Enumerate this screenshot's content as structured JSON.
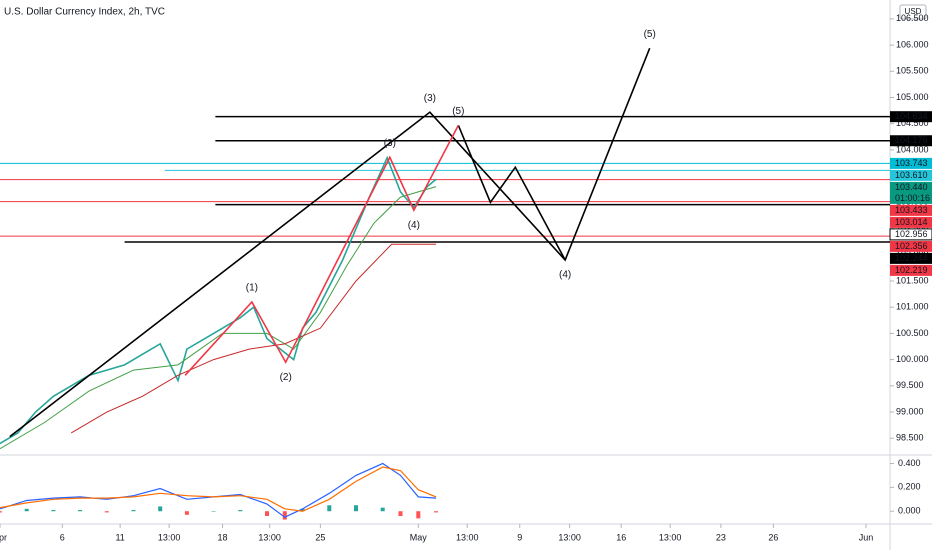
{
  "chart_data": {
    "type": "line",
    "title": "U.S. Dollar Currency Index, 2h, TVC",
    "currency": "USD",
    "xlim": [
      0,
      100
    ],
    "xticks": [
      {
        "value": 0,
        "label": "Apr"
      },
      {
        "value": 7,
        "label": "6"
      },
      {
        "value": 13.5,
        "label": "11"
      },
      {
        "value": 19,
        "label": "13:00"
      },
      {
        "value": 25,
        "label": "18"
      },
      {
        "value": 30.3,
        "label": "13:00"
      },
      {
        "value": 36,
        "label": "25"
      },
      {
        "value": 47,
        "label": "May"
      },
      {
        "value": 52.5,
        "label": "13:00"
      },
      {
        "value": 58.4,
        "label": "9"
      },
      {
        "value": 64,
        "label": "13:00"
      },
      {
        "value": 69.8,
        "label": "16"
      },
      {
        "value": 75.3,
        "label": "13:00"
      },
      {
        "value": 81,
        "label": "23"
      },
      {
        "value": 86.9,
        "label": "26"
      },
      {
        "value": 97.3,
        "label": "Jun"
      }
    ],
    "ylim": [
      98.18,
      106.86
    ],
    "yticks": [
      {
        "value": 98.5,
        "label": "98.500"
      },
      {
        "value": 99,
        "label": "99.000"
      },
      {
        "value": 99.5,
        "label": "99.500"
      },
      {
        "value": 100,
        "label": "100.000"
      },
      {
        "value": 100.5,
        "label": "100.500"
      },
      {
        "value": 101,
        "label": "101.000"
      },
      {
        "value": 101.5,
        "label": "101.500"
      },
      {
        "value": 102,
        "label": "102.000"
      },
      {
        "value": 102.5,
        "label": "102.500"
      },
      {
        "value": 103,
        "label": "103.000"
      },
      {
        "value": 103.5,
        "label": "103.500"
      },
      {
        "value": 104,
        "label": "104.000"
      },
      {
        "value": 104.5,
        "label": "104.500"
      },
      {
        "value": 105,
        "label": "105.000"
      },
      {
        "value": 105.5,
        "label": "105.500"
      },
      {
        "value": 106,
        "label": "106.000"
      },
      {
        "value": 106.5,
        "label": "106.500"
      }
    ],
    "series": [
      {
        "color": "#26a69a",
        "x": [
          0,
          2,
          4,
          6,
          8,
          10,
          12,
          14,
          16,
          18,
          20,
          21,
          23,
          25,
          27,
          28.5,
          30,
          31.5,
          33,
          34,
          35.5,
          37,
          38.5,
          40,
          41.5,
          43.5,
          45,
          46.5,
          48,
          49
        ],
        "values": [
          98.4,
          98.6,
          99.0,
          99.3,
          99.5,
          99.7,
          99.8,
          99.9,
          100.1,
          100.3,
          99.6,
          100.2,
          100.4,
          100.6,
          100.8,
          101.0,
          100.4,
          100.2,
          100.0,
          100.6,
          100.9,
          101.4,
          101.9,
          102.5,
          103.1,
          103.85,
          103.2,
          102.9,
          103.3,
          103.44
        ]
      },
      {
        "color": "#43a047",
        "x": [
          0,
          5,
          10,
          15,
          20,
          25,
          30,
          33,
          36,
          39,
          42,
          45,
          49
        ],
        "values": [
          98.3,
          98.8,
          99.4,
          99.8,
          99.9,
          100.5,
          100.5,
          100.2,
          100.9,
          101.8,
          102.6,
          103.1,
          103.3
        ]
      },
      {
        "color": "#c62828",
        "x": [
          8,
          12,
          16,
          20,
          24,
          28,
          32,
          36,
          40,
          44,
          49
        ],
        "values": [
          98.6,
          99.0,
          99.3,
          99.7,
          100.0,
          100.2,
          100.3,
          100.6,
          101.5,
          102.2,
          102.2
        ]
      }
    ],
    "waves": [
      {
        "color": "#000000",
        "x": [
          1.1,
          48.3,
          63.5,
          73.0
        ],
        "values": [
          98.53,
          104.72,
          101.9,
          105.94
        ],
        "labels": [
          null,
          "(3)",
          "(4)",
          "(5)"
        ]
      },
      {
        "color": "#000000",
        "x": [
          51.5,
          55.1,
          57.9,
          63.5
        ],
        "values": [
          104.47,
          103.0,
          103.67,
          101.9
        ],
        "labels": [
          null,
          null,
          null,
          null
        ]
      },
      {
        "color": "#f23645",
        "x": [
          20.8,
          28.3,
          32.1,
          43.8,
          46.5,
          51.5
        ],
        "values": [
          99.7,
          101.1,
          99.95,
          103.86,
          102.85,
          104.47
        ],
        "labels": [
          null,
          "(1)",
          "(2)",
          "(3)",
          "(4)",
          "(5)"
        ]
      }
    ],
    "levels": [
      {
        "value": 104.634,
        "label": "104.634",
        "color": "#000000",
        "x_start": 24.2
      },
      {
        "value": 104.175,
        "label": "104.175",
        "color": "#000000",
        "x_start": 24.2
      },
      {
        "value": 103.743,
        "label": "103.743",
        "color": "#00bcd4",
        "x_start": 0
      },
      {
        "value": 103.61,
        "label": "103.610",
        "color": "#26c6da",
        "x_start": 18.5
      },
      {
        "value": 103.44,
        "label": "103.440",
        "color": "#089981",
        "x_start": null,
        "countdown": "01:00:16"
      },
      {
        "value": 103.433,
        "label": "103.433",
        "color": "#f23645",
        "x_start": 0
      },
      {
        "value": 103.014,
        "label": "103.014",
        "color": "#f23645",
        "x_start": 0
      },
      {
        "value": 102.956,
        "label": "102.956",
        "color": "#000000",
        "x_start": 24.2
      },
      {
        "value": 102.356,
        "label": "102.356",
        "color": "#f23645",
        "x_start": 0
      },
      {
        "value": 102.244,
        "label": "102.244",
        "color": "#000000",
        "x_start": 14
      },
      {
        "value": 102.219,
        "label": "102.219",
        "color": "#f23645",
        "x_start": null
      }
    ],
    "macd": {
      "ylim": [
        -0.107,
        0.471
      ],
      "yticks": [
        {
          "value": 0,
          "label": "0.000"
        },
        {
          "value": 0.2,
          "label": "0.200"
        },
        {
          "value": 0.4,
          "label": "0.400"
        }
      ],
      "x": [
        0,
        3,
        6,
        9,
        12,
        15,
        18,
        21,
        24,
        27,
        30,
        32,
        34,
        37,
        40,
        43,
        45,
        47,
        49
      ],
      "macd": {
        "color": "#2962ff",
        "values": [
          0.02,
          0.09,
          0.11,
          0.12,
          0.1,
          0.13,
          0.19,
          0.1,
          0.12,
          0.14,
          0.06,
          -0.05,
          0.02,
          0.15,
          0.3,
          0.4,
          0.3,
          0.12,
          0.11
        ]
      },
      "signal": {
        "color": "#ff6d00",
        "values": [
          0.03,
          0.07,
          0.1,
          0.11,
          0.11,
          0.12,
          0.15,
          0.13,
          0.12,
          0.13,
          0.1,
          0.02,
          0.0,
          0.1,
          0.25,
          0.37,
          0.34,
          0.18,
          0.12
        ]
      },
      "histogram": {
        "up_color": "#26a69a",
        "down_color": "#ff5252",
        "values": [
          -0.01,
          0.02,
          0.01,
          0.01,
          -0.01,
          0.01,
          0.04,
          -0.03,
          0.0,
          0.01,
          -0.04,
          -0.07,
          0.02,
          0.05,
          0.05,
          0.03,
          -0.04,
          -0.06,
          -0.01
        ]
      }
    }
  }
}
